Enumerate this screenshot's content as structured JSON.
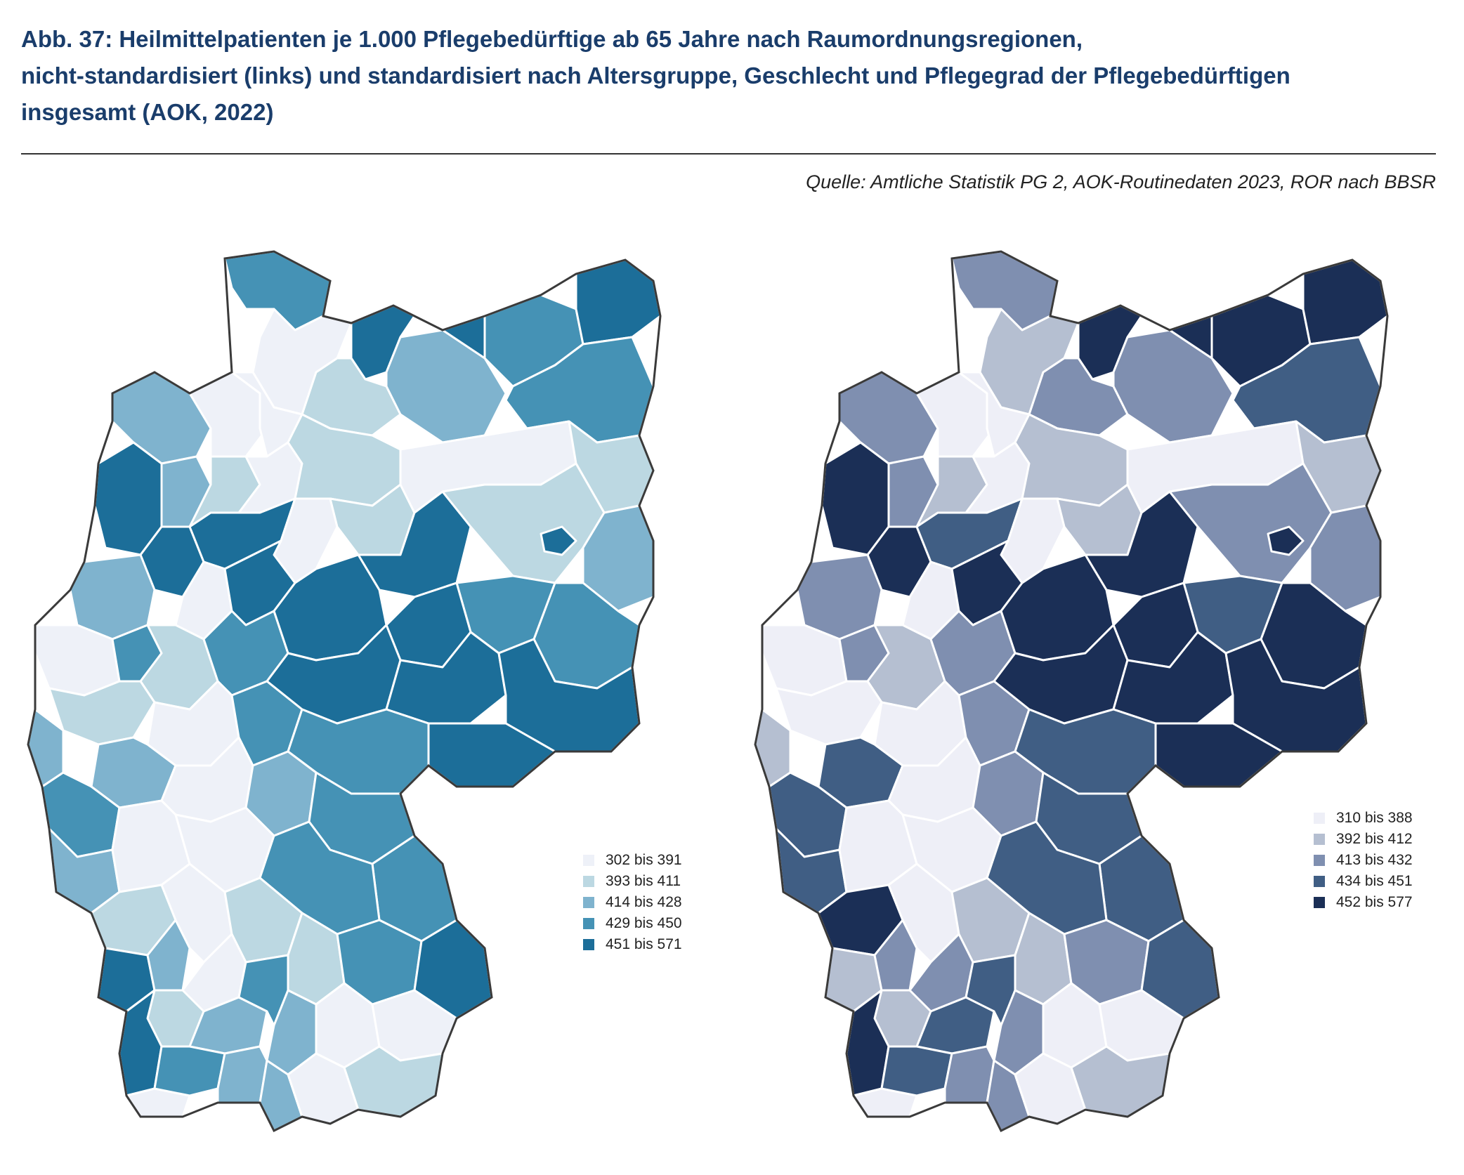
{
  "figure": {
    "title_lines": [
      "Abb. 37: Heilmittelpatienten je 1.000 Pflegebedürftige ab 65 Jahre nach Raumordnungsregionen,",
      "nicht-standardisiert (links) und standardisiert nach Altersgruppe, Geschlecht und Pflegegrad der Pflegebedürftigen",
      "insgesamt (AOK, 2022)"
    ],
    "source": "Quelle: Amtliche Statistik PG 2, AOK-Routinedaten 2023, ROR nach BBSR"
  },
  "maps": [
    {
      "id": "left",
      "legend": [
        {
          "label": "302 bis 391",
          "color": "#eef1f8"
        },
        {
          "label": "393 bis 411",
          "color": "#bcd8e2"
        },
        {
          "label": "414 bis 428",
          "color": "#7fb3ce"
        },
        {
          "label": "429 bis 450",
          "color": "#4592b5"
        },
        {
          "label": "451 bis 571",
          "color": "#1c6e99"
        }
      ]
    },
    {
      "id": "right",
      "legend": [
        {
          "label": "310 bis 388",
          "color": "#eeeff7"
        },
        {
          "label": "392 bis 412",
          "color": "#b5bfd1"
        },
        {
          "label": "413 bis 432",
          "color": "#7f8fb0"
        },
        {
          "label": "434 bis 451",
          "color": "#405e84"
        },
        {
          "label": "452 bis 577",
          "color": "#1b2f56"
        }
      ]
    }
  ]
}
